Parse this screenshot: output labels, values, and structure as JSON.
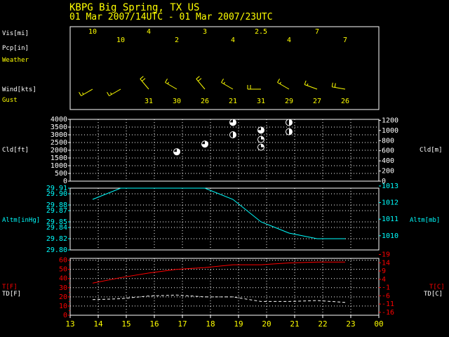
{
  "header": {
    "station_line": "KBPG  Big Spring, TX US",
    "period_line": "01 Mar 2007/14UTC - 01 Mar 2007/23UTC"
  },
  "colors": {
    "background": "#000000",
    "frame": "#ffffff",
    "grid": "#ffffff",
    "label_yellow": "#ffff00",
    "label_white": "#ffffff",
    "altimeter": "#00ffff",
    "temperature": "#ff0000",
    "dewpoint": "#ffffff",
    "cloud_marker": "#ffffff"
  },
  "chart_data": [
    {
      "type": "table",
      "panel": "surface-observations",
      "rows": [
        {
          "label": "Vis[mi]",
          "color": "#ffffff"
        },
        {
          "label": "Pcp[in]",
          "color": "#ffffff"
        },
        {
          "label": "Weather",
          "color": "#ffff00"
        },
        {
          "label": "Wind[kts]",
          "color": "#ffffff"
        },
        {
          "label": "Gust",
          "color": "#ffff00"
        }
      ],
      "x": [
        13.8,
        14.8,
        15.8,
        16.8,
        17.8,
        18.8,
        19.8,
        20.8,
        21.8,
        22.8
      ],
      "visibility": [
        "10",
        "10",
        "4",
        "2",
        "3",
        "4",
        "2.5",
        "4",
        "7",
        "7"
      ],
      "gust": [
        "",
        "",
        "31",
        "30",
        "26",
        "21",
        "31",
        "29",
        "27",
        "26"
      ],
      "wind_direction_deg": [
        240,
        240,
        320,
        300,
        320,
        300,
        270,
        300,
        290,
        280
      ],
      "wind_speed_kt": [
        15,
        15,
        20,
        15,
        20,
        15,
        20,
        15,
        15,
        20
      ]
    },
    {
      "type": "scatter",
      "panel": "cloud-height",
      "ylabel": "Cld[ft]",
      "ylabel_right": "Cld[m]",
      "ylim": [
        0,
        4000
      ],
      "yticks": [
        0,
        500,
        1000,
        1500,
        2000,
        2500,
        3000,
        3500,
        4000
      ],
      "yticks_right": [
        0,
        200,
        400,
        600,
        800,
        1000,
        1200
      ],
      "points": [
        {
          "x": 16.8,
          "y": 1900,
          "cover": "BKN"
        },
        {
          "x": 17.8,
          "y": 2400,
          "cover": "BKN"
        },
        {
          "x": 18.8,
          "y": 3000,
          "cover": "SCT"
        },
        {
          "x": 18.8,
          "y": 3800,
          "cover": "BKN"
        },
        {
          "x": 19.8,
          "y": 2200,
          "cover": "FEW"
        },
        {
          "x": 19.8,
          "y": 2700,
          "cover": "FEW"
        },
        {
          "x": 19.8,
          "y": 3300,
          "cover": "BKN"
        },
        {
          "x": 20.8,
          "y": 3200,
          "cover": "SCT"
        },
        {
          "x": 20.8,
          "y": 3800,
          "cover": "SCT"
        }
      ]
    },
    {
      "type": "line",
      "panel": "altimeter",
      "ylabel": "Altm[inHg]",
      "ylabel_right": "Altm[mb]",
      "ylim": [
        29.8,
        29.91
      ],
      "yticks": [
        "29.80",
        "29.82",
        "29.84",
        "29.85",
        "29.87",
        "29.88",
        "29.90",
        "29.91"
      ],
      "yticks_right": [
        1010,
        1011,
        1012,
        1013
      ],
      "series": [
        {
          "x": [
            13.8,
            14.8,
            15.8,
            16.8,
            17.8,
            18.8,
            19.8,
            20.8,
            21.8,
            22.8
          ],
          "values": [
            29.89,
            29.91,
            29.91,
            29.91,
            29.91,
            29.89,
            29.85,
            29.83,
            29.82,
            29.82
          ]
        }
      ]
    },
    {
      "type": "line",
      "panel": "temperature",
      "ylabel_lines": [
        "T[F]",
        "TD[F]"
      ],
      "ylabel_right_lines": [
        "T[C]",
        "TD[C]"
      ],
      "ylim": [
        0,
        62
      ],
      "yticks": [
        0,
        5,
        10,
        15,
        20,
        25,
        30,
        35,
        40,
        45,
        50,
        55,
        60
      ],
      "yticks_right": [
        "-16",
        "-11",
        "-6",
        "-1",
        "4",
        "9",
        "14",
        "19"
      ],
      "xlim": [
        13,
        24
      ],
      "xticks": [
        "13",
        "14",
        "15",
        "16",
        "17",
        "18",
        "19",
        "20",
        "21",
        "22",
        "23",
        "00"
      ],
      "series": [
        {
          "color": "#ff0000",
          "x": [
            13.8,
            14.8,
            15.8,
            16.8,
            17.8,
            18.8,
            19.8,
            20.8,
            21.8,
            22.8
          ],
          "values": [
            35,
            41,
            46,
            50,
            52,
            55,
            55,
            57,
            58,
            58
          ]
        },
        {
          "color": "#ffffff",
          "dashed": true,
          "x": [
            13.8,
            14.8,
            15.8,
            16.8,
            17.8,
            18.8,
            19.8,
            20.8,
            21.8,
            22.8
          ],
          "values": [
            17,
            18,
            21,
            22,
            20,
            20,
            15,
            15,
            16,
            14
          ]
        }
      ]
    }
  ]
}
